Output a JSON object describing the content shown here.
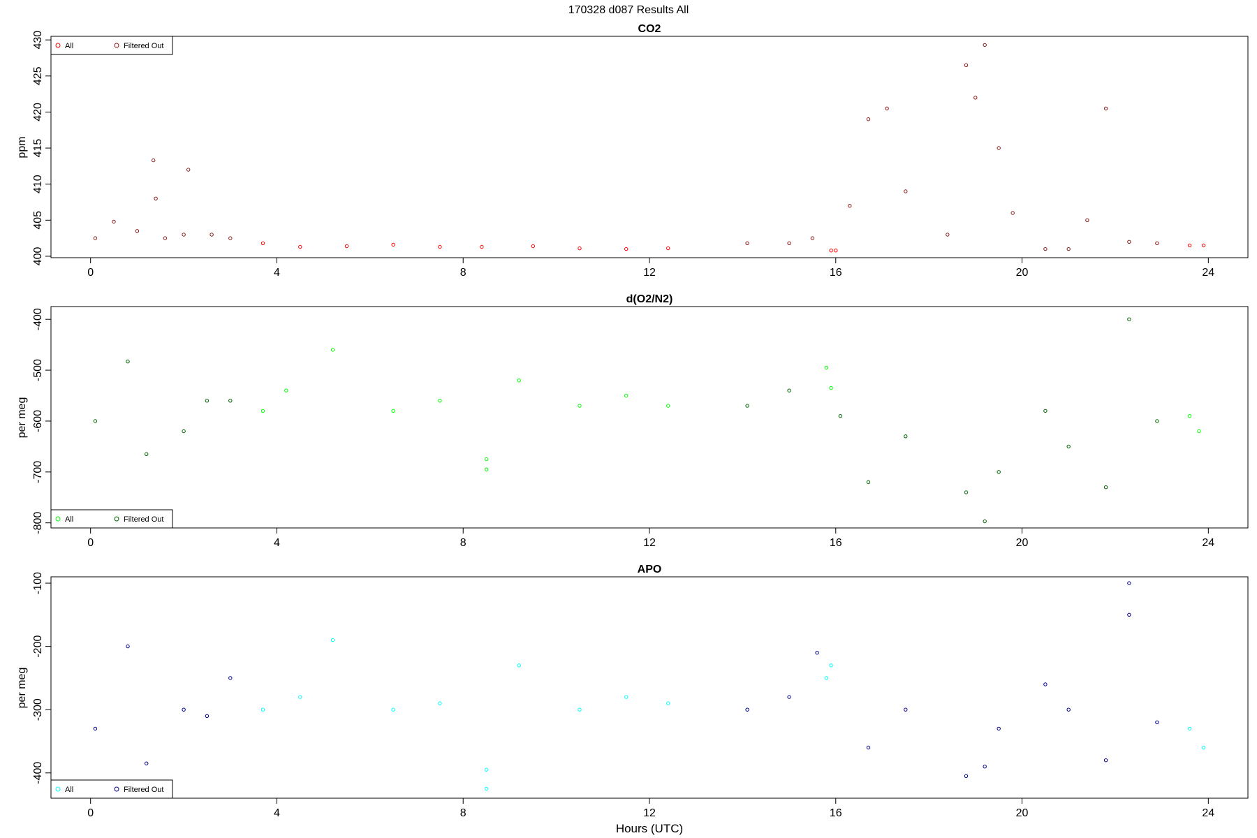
{
  "figure_title": "170328   d087   Results All",
  "chart_data": [
    {
      "type": "scatter",
      "title": "CO2",
      "xlabel": "",
      "ylabel": "ppm",
      "xlim": [
        -0.85,
        24.85
      ],
      "ylim": [
        399.8,
        430.5
      ],
      "xticks": [
        0,
        4,
        8,
        12,
        16,
        20,
        24
      ],
      "yticks": [
        400,
        405,
        410,
        415,
        420,
        425,
        430
      ],
      "legend": {
        "placement": "top-left",
        "entries": [
          "All",
          "Filtered Out"
        ]
      },
      "series": [
        {
          "name": "All",
          "color": "#ff0000",
          "x": [
            3.7,
            4.5,
            5.5,
            6.5,
            7.5,
            8.4,
            9.5,
            10.5,
            11.5,
            12.4,
            15.9,
            16.0,
            23.6,
            23.9
          ],
          "y": [
            401.8,
            401.3,
            401.4,
            401.6,
            401.3,
            401.3,
            401.4,
            401.1,
            401.0,
            401.1,
            400.8,
            400.8,
            401.5,
            401.5
          ]
        },
        {
          "name": "Filtered Out",
          "color": "#8b1a1a",
          "x": [
            0.1,
            0.5,
            1.0,
            1.35,
            1.4,
            1.6,
            2.0,
            2.1,
            2.6,
            3.0,
            14.1,
            15.0,
            15.5,
            16.3,
            16.7,
            17.1,
            17.5,
            18.4,
            18.8,
            19.0,
            19.2,
            19.5,
            19.8,
            20.5,
            21.0,
            21.4,
            21.8,
            22.3,
            22.9
          ],
          "y": [
            402.5,
            404.8,
            403.5,
            413.3,
            408.0,
            402.5,
            403.0,
            412.0,
            403.0,
            402.5,
            401.8,
            401.8,
            402.5,
            407.0,
            419.0,
            420.5,
            409.0,
            403.0,
            426.5,
            422.0,
            429.3,
            415.0,
            406.0,
            401.0,
            401.0,
            405.0,
            420.5,
            402.0,
            401.8
          ]
        }
      ]
    },
    {
      "type": "scatter",
      "title": "d(O2/N2)",
      "xlabel": "",
      "ylabel": "per meg",
      "xlim": [
        -0.85,
        24.85
      ],
      "ylim": [
        -810,
        -375
      ],
      "xticks": [
        0,
        4,
        8,
        12,
        16,
        20,
        24
      ],
      "yticks": [
        -800,
        -700,
        -600,
        -500,
        -400
      ],
      "legend": {
        "placement": "bottom-left",
        "entries": [
          "All",
          "Filtered Out"
        ]
      },
      "series": [
        {
          "name": "All",
          "color": "#00ff00",
          "x": [
            3.7,
            4.2,
            5.2,
            6.5,
            7.5,
            8.5,
            8.5,
            9.2,
            10.5,
            11.5,
            12.4,
            15.8,
            15.9,
            23.6,
            23.8
          ],
          "y": [
            -580,
            -540,
            -460,
            -580,
            -560,
            -695,
            -675,
            -520,
            -570,
            -550,
            -570,
            -495,
            -535,
            -590,
            -620
          ]
        },
        {
          "name": "Filtered Out",
          "color": "#006400",
          "x": [
            0.1,
            0.8,
            1.2,
            2.0,
            2.5,
            3.0,
            14.1,
            15.0,
            16.1,
            16.7,
            17.5,
            18.8,
            19.2,
            19.5,
            20.5,
            21.0,
            21.8,
            22.3,
            22.9
          ],
          "y": [
            -600,
            -483,
            -665,
            -620,
            -560,
            -560,
            -570,
            -540,
            -590,
            -720,
            -630,
            -740,
            -797,
            -700,
            -580,
            -650,
            -730,
            -400,
            -600
          ]
        }
      ]
    },
    {
      "type": "scatter",
      "title": "APO",
      "xlabel": "Hours (UTC)",
      "ylabel": "per meg",
      "xlim": [
        -0.85,
        24.85
      ],
      "ylim": [
        -440,
        -90
      ],
      "xticks": [
        0,
        4,
        8,
        12,
        16,
        20,
        24
      ],
      "yticks": [
        -400,
        -300,
        -200,
        -100
      ],
      "legend": {
        "placement": "bottom-left",
        "entries": [
          "All",
          "Filtered Out"
        ]
      },
      "series": [
        {
          "name": "All",
          "color": "#00ffff",
          "x": [
            3.7,
            4.5,
            5.2,
            6.5,
            7.5,
            8.5,
            8.5,
            9.2,
            10.5,
            11.5,
            12.4,
            15.8,
            15.9,
            23.6,
            23.9
          ],
          "y": [
            -300,
            -280,
            -190,
            -300,
            -290,
            -395,
            -425,
            -230,
            -300,
            -280,
            -290,
            -250,
            -230,
            -330,
            -360
          ]
        },
        {
          "name": "Filtered Out",
          "color": "#00008b",
          "x": [
            0.1,
            0.8,
            1.2,
            2.0,
            2.5,
            3.0,
            14.1,
            15.0,
            15.6,
            16.7,
            17.5,
            18.8,
            19.2,
            19.5,
            20.5,
            21.0,
            21.8,
            22.3,
            22.3,
            22.9
          ],
          "y": [
            -330,
            -200,
            -385,
            -300,
            -310,
            -250,
            -300,
            -280,
            -210,
            -360,
            -300,
            -405,
            -390,
            -330,
            -260,
            -300,
            -380,
            -100,
            -150,
            -320
          ]
        }
      ]
    }
  ]
}
